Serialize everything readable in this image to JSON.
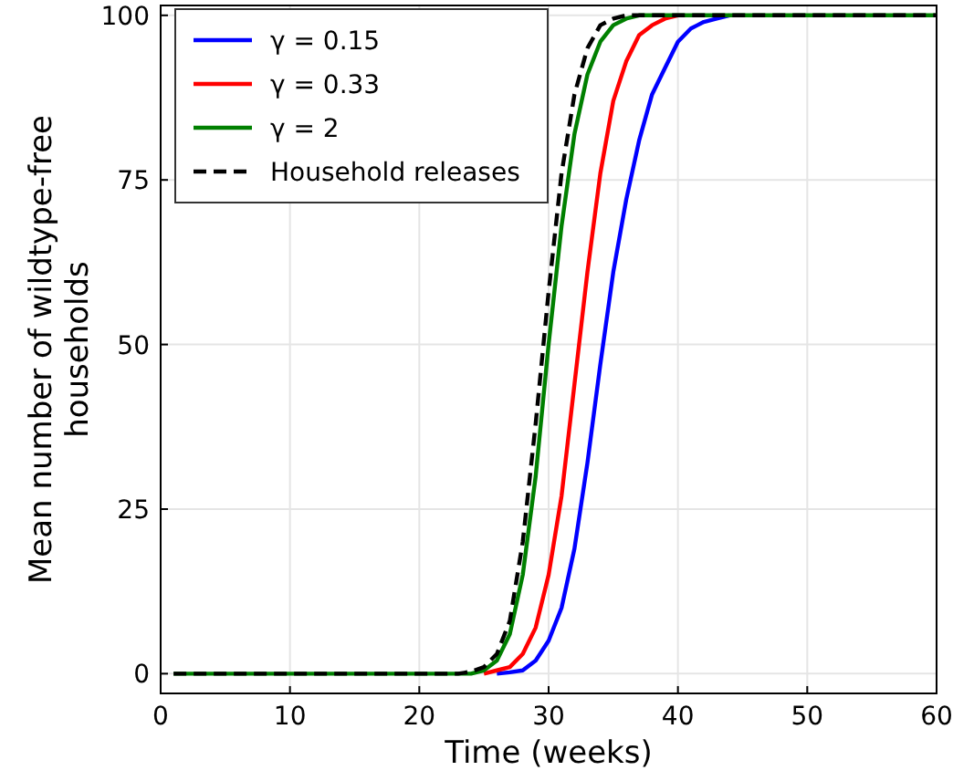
{
  "chart_data": {
    "type": "line",
    "xlabel": "Time (weeks)",
    "ylabel": "Mean number of wildtype-free households",
    "x": [
      1,
      23,
      24,
      25,
      26,
      27,
      28,
      29,
      30,
      31,
      32,
      33,
      34,
      35,
      36,
      37,
      38,
      39,
      40,
      41,
      42,
      43,
      44,
      45,
      60
    ],
    "series": [
      {
        "name": "γ = 0.15",
        "color": "#0000ff",
        "x": [
          26,
          27,
          28,
          29,
          30,
          31,
          32,
          33,
          34,
          35,
          36,
          37,
          38,
          39,
          40,
          41,
          42,
          43,
          44
        ],
        "values": [
          0,
          0.2,
          0.5,
          2,
          5,
          10,
          19,
          32,
          47,
          61,
          72,
          81,
          88,
          92,
          96,
          98,
          99,
          99.5,
          100
        ]
      },
      {
        "name": "γ = 0.33",
        "color": "#ff0000",
        "x": [
          25,
          26,
          27,
          28,
          29,
          30,
          31,
          32,
          33,
          34,
          35,
          36,
          37,
          38,
          39,
          40
        ],
        "values": [
          0,
          0.5,
          1,
          3,
          7,
          15,
          27,
          44,
          61,
          76,
          87,
          93,
          97,
          98.5,
          99.5,
          100
        ]
      },
      {
        "name": "γ = 2",
        "color": "#008000",
        "values": [
          0,
          0,
          0,
          0.5,
          2,
          6,
          15,
          30,
          50,
          68,
          82,
          91,
          96,
          98.5,
          99.5,
          100,
          100,
          100,
          100,
          100,
          100,
          100,
          100,
          100,
          100
        ]
      },
      {
        "name": "Household releases",
        "color": "#000000",
        "line_style": "dashed",
        "values": [
          0,
          0,
          0.3,
          1,
          3,
          8,
          20,
          38,
          58,
          76,
          88,
          95,
          98.5,
          99.5,
          100,
          100,
          100,
          100,
          100,
          100,
          100,
          100,
          100,
          100,
          100
        ]
      }
    ],
    "xlim": [
      0,
      60
    ],
    "xticks": [
      0,
      10,
      20,
      30,
      40,
      50,
      60
    ],
    "ylim": [
      -3,
      101.5
    ],
    "yticks": [
      0,
      25,
      50,
      75,
      100
    ],
    "grid": true,
    "legend": "top left",
    "line_style": "solid"
  }
}
